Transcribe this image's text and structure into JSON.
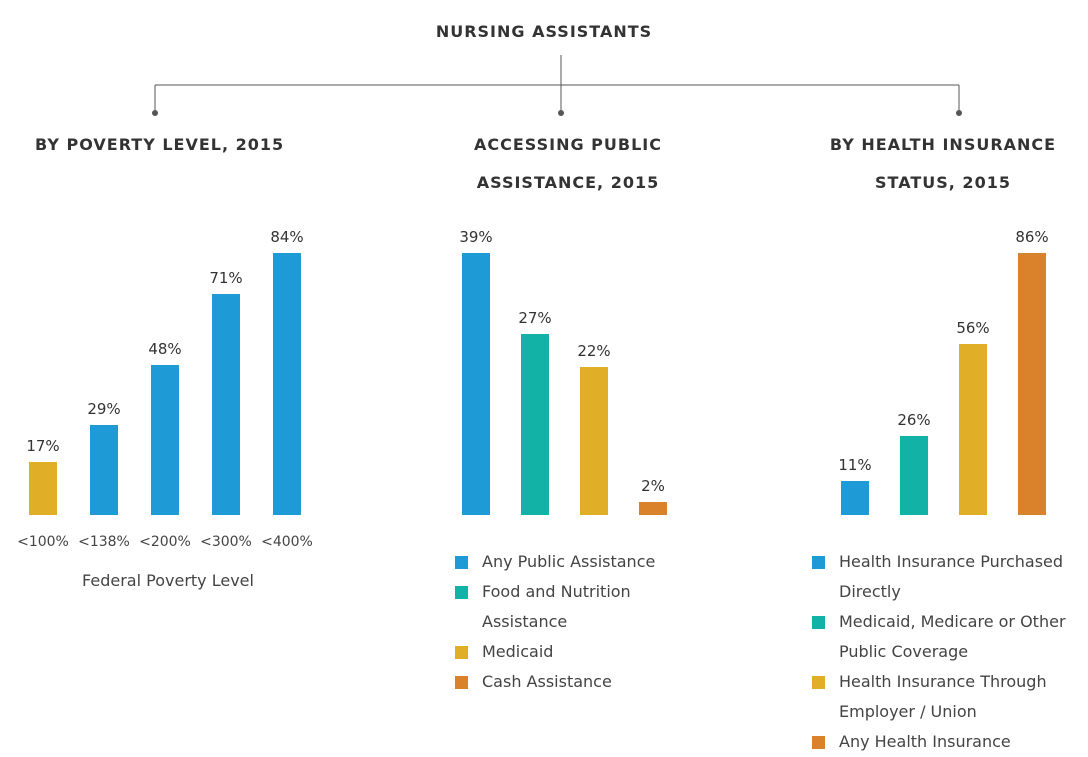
{
  "title": "NURSING ASSISTANTS",
  "chart_data": [
    {
      "type": "bar",
      "title": "BY POVERTY LEVEL, 2015",
      "categories": [
        "<100%",
        "<138%",
        "<200%",
        "<300%",
        "<400%"
      ],
      "values": [
        17,
        29,
        48,
        71,
        84
      ],
      "value_labels": [
        "17%",
        "29%",
        "48%",
        "71%",
        "84%"
      ],
      "colors": [
        "#e0ae27",
        "#1e9ad6",
        "#1e9ad6",
        "#1e9ad6",
        "#1e9ad6"
      ],
      "xlabel": "Federal Poverty Level",
      "legend": false
    },
    {
      "type": "bar",
      "title": "ACCESSING PUBLIC ASSISTANCE, 2015",
      "categories": [
        "Any Public Assistance",
        "Food and Nutrition Assistance",
        "Medicaid",
        "Cash Assistance"
      ],
      "values": [
        39,
        27,
        22,
        2
      ],
      "value_labels": [
        "39%",
        "27%",
        "22%",
        "2%"
      ],
      "colors": [
        "#1e9ad6",
        "#13b2a6",
        "#e0ae27",
        "#d9822b"
      ],
      "legend": true
    },
    {
      "type": "bar",
      "title": "BY HEALTH INSURANCE STATUS, 2015",
      "categories": [
        "Health Insurance Purchased Directly",
        "Medicaid, Medicare or Other Public Coverage",
        "Health Insurance Through Employer / Union",
        "Any Health Insurance"
      ],
      "values": [
        11,
        26,
        56,
        86
      ],
      "value_labels": [
        "11%",
        "26%",
        "56%",
        "86%"
      ],
      "colors": [
        "#1e9ad6",
        "#13b2a6",
        "#e0ae27",
        "#d9822b"
      ],
      "legend": true
    }
  ]
}
